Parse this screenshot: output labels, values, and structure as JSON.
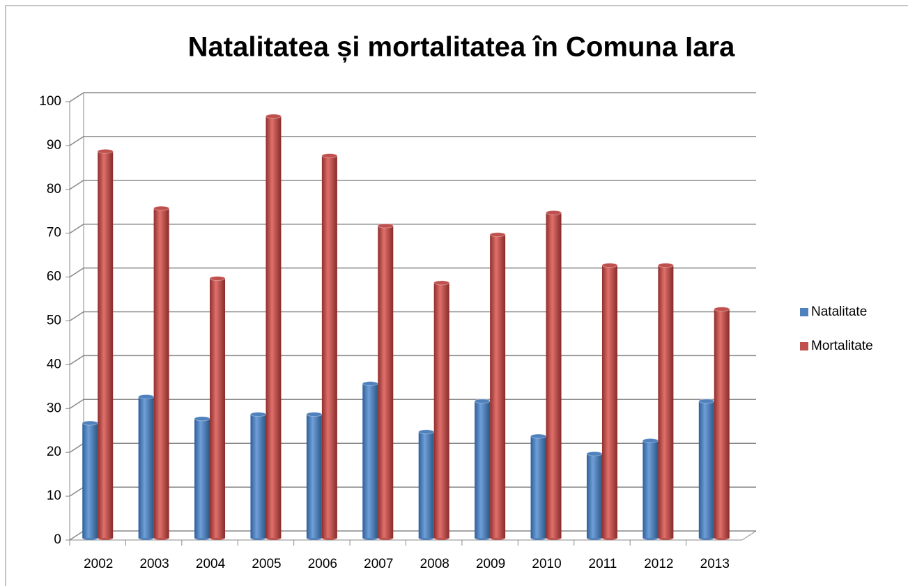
{
  "chart_data": {
    "type": "bar",
    "title": "Natalitatea și mortalitatea în Comuna Iara",
    "categories": [
      "2002",
      "2003",
      "2004",
      "2005",
      "2006",
      "2007",
      "2008",
      "2009",
      "2010",
      "2011",
      "2012",
      "2013"
    ],
    "series": [
      {
        "name": "Natalitate",
        "color": "#4f81bd",
        "values": [
          27,
          33,
          28,
          29,
          29,
          36,
          25,
          32,
          24,
          20,
          23,
          32
        ]
      },
      {
        "name": "Mortalitate",
        "color": "#c0504d",
        "values": [
          89,
          76,
          60,
          97,
          88,
          72,
          59,
          70,
          75,
          63,
          63,
          53
        ]
      }
    ],
    "ylim": [
      0,
      100
    ],
    "yticks": [
      0,
      10,
      20,
      30,
      40,
      50,
      60,
      70,
      80,
      90,
      100
    ],
    "grid": true,
    "legend": "right"
  }
}
